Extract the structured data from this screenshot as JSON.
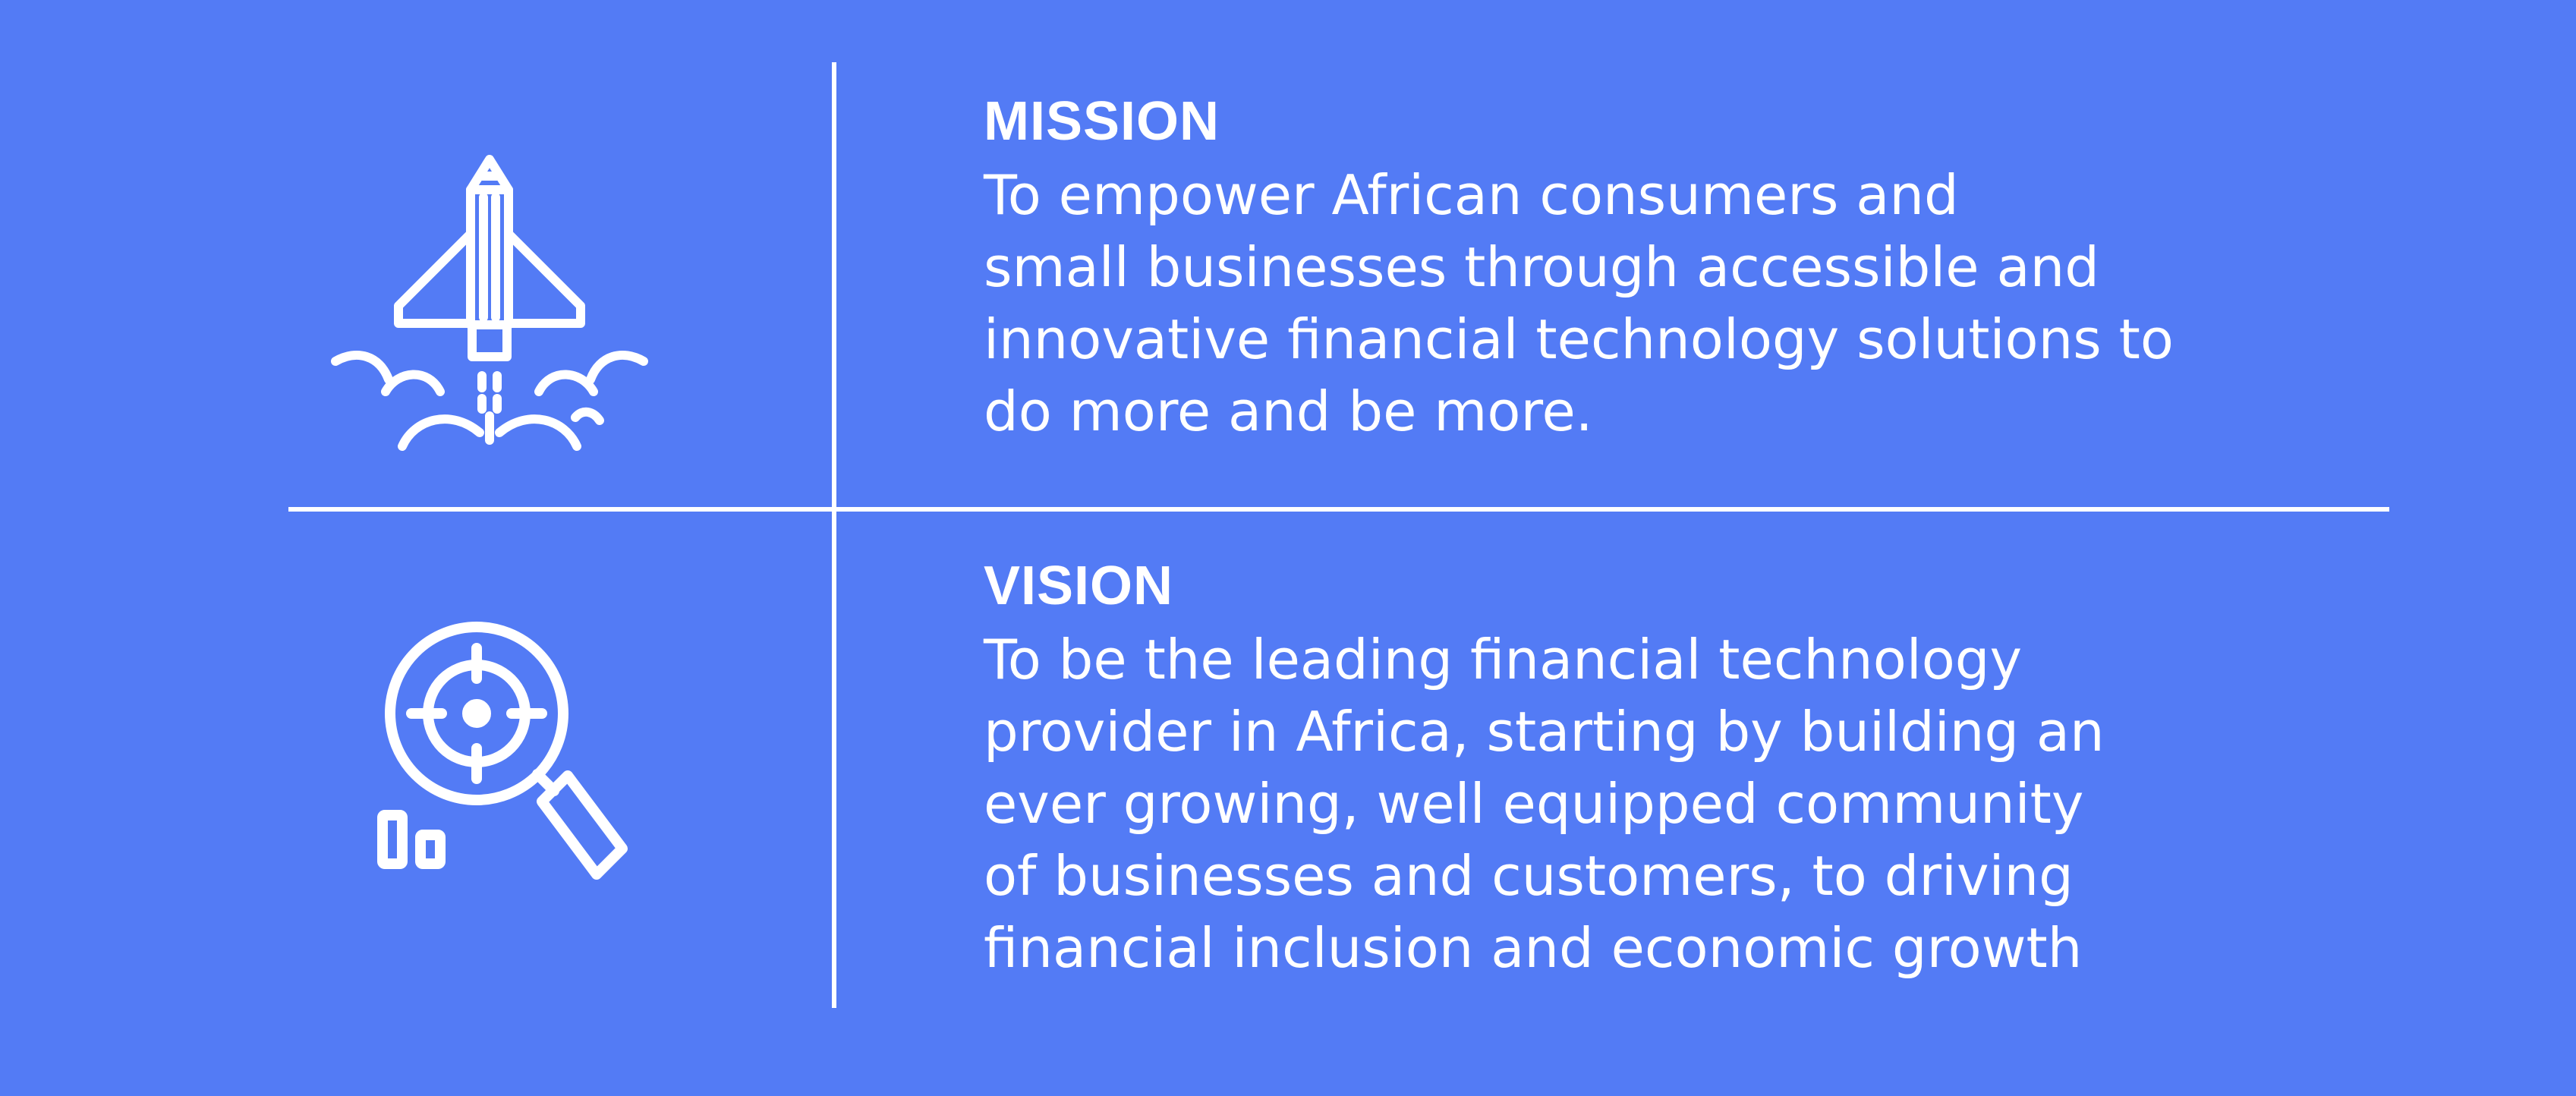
{
  "mission": {
    "heading": "MISSION",
    "lines": [
      "To empower African consumers and",
      "small businesses through accessible and",
      "innovative financial technology solutions to",
      "do more and be more."
    ],
    "icon": "rocket-launch-icon"
  },
  "vision": {
    "heading": "VISION",
    "lines": [
      "To be the leading financial technology",
      "provider in Africa, starting by building an",
      "ever growing, well equipped community",
      "of businesses and customers, to driving",
      "financial inclusion and economic growth"
    ],
    "icon": "magnifier-target-icon"
  },
  "colors": {
    "background": "#537bf5",
    "foreground": "#ffffff"
  }
}
